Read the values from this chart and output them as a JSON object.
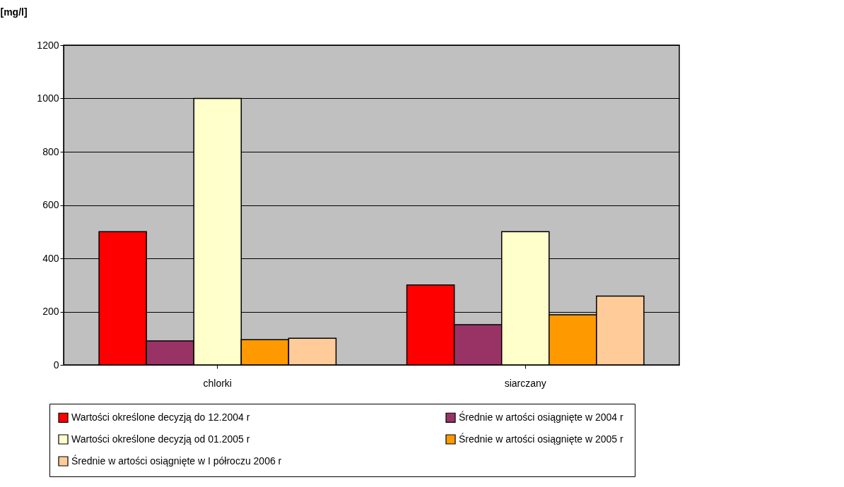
{
  "chart_data": {
    "type": "bar",
    "ylabel": "[mg/l]",
    "categories": [
      "chlorki",
      "siarczany"
    ],
    "series": [
      {
        "name": "Wartości określone decyzją do 12.2004 r",
        "color": "#ff0000",
        "values": [
          500,
          300
        ]
      },
      {
        "name": "Średnie w artości osiągnięte w  2004 r",
        "color": "#993366",
        "values": [
          90,
          151
        ]
      },
      {
        "name": "Wartości określone decyzją od 01.2005 r",
        "color": "#ffffcc",
        "values": [
          1000,
          500
        ]
      },
      {
        "name": "Średnie w artości osiągnięte w  2005 r",
        "color": "#ff9900",
        "values": [
          95,
          188
        ]
      },
      {
        "name": "Średnie w artości osiągnięte w  I półroczu 2006 r",
        "color": "#ffcc99",
        "values": [
          100,
          258
        ]
      }
    ],
    "ylim": [
      0,
      1200
    ],
    "yticks": [
      0,
      200,
      400,
      600,
      800,
      1000,
      1200
    ],
    "grid": "y",
    "legend": "bottom"
  }
}
